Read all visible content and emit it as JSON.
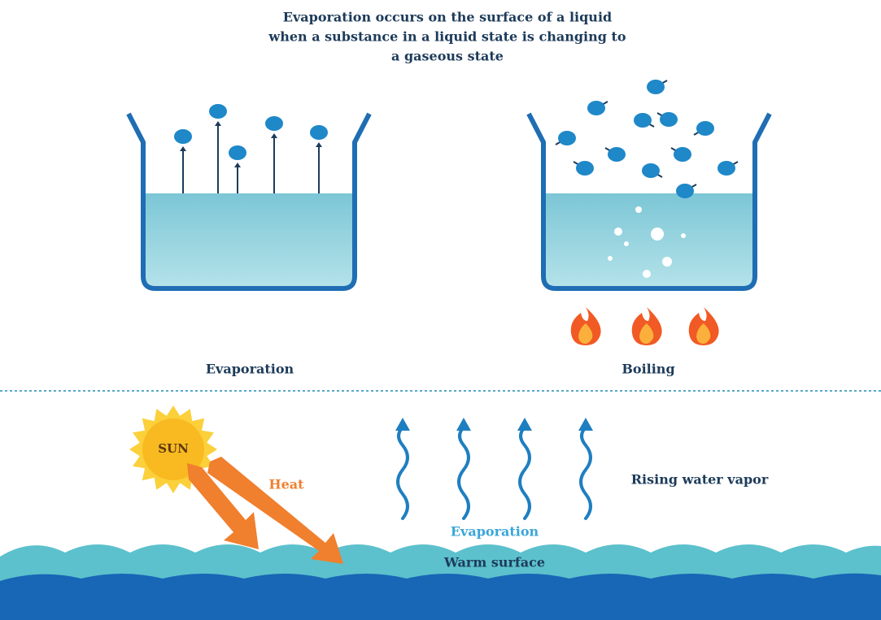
{
  "title_lines": [
    "Evaporation occurs on the surface of a liquid",
    "when a substance in a liquid state is changing to",
    "a gaseous state"
  ],
  "top_panels": [
    {
      "label": "Evaporation"
    },
    {
      "label": "Boiling"
    }
  ],
  "bottom": {
    "sun": "SUN",
    "heat": "Heat",
    "rising": "Rising water vapor",
    "evaporation": "Evaporation",
    "surface": "Warm surface"
  }
}
